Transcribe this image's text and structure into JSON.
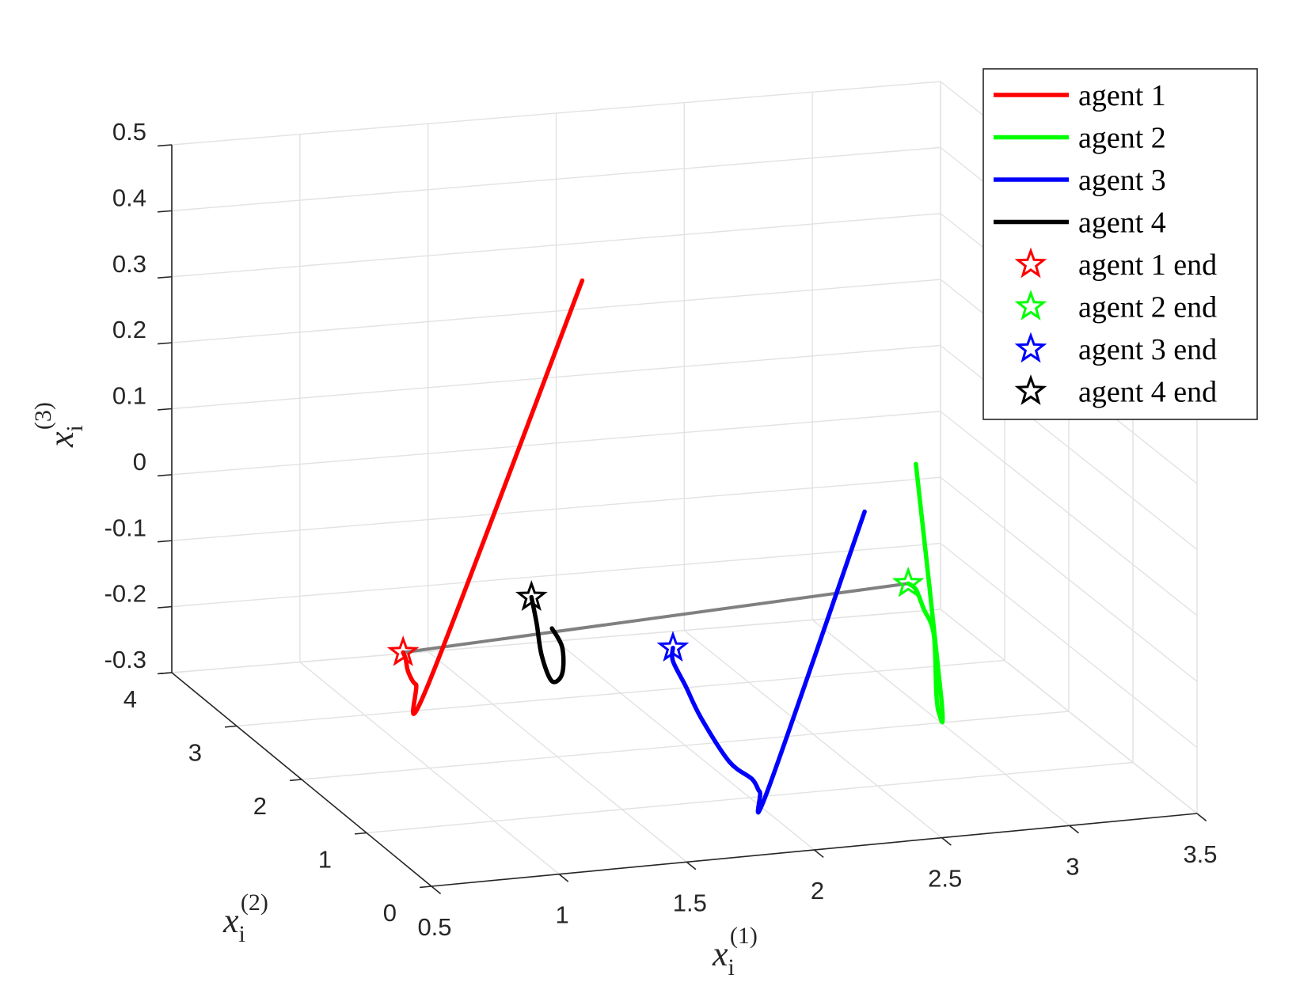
{
  "chart_data": {
    "type": "line",
    "subtype": "3d-trajectory",
    "title": "",
    "xlabel": {
      "base": "x",
      "sub": "i",
      "sup": "(1)"
    },
    "ylabel": {
      "base": "x",
      "sub": "i",
      "sup": "(2)"
    },
    "zlabel": {
      "base": "x",
      "sub": "i",
      "sup": "(3)"
    },
    "xlim": [
      0.5,
      3.5
    ],
    "ylim": [
      0,
      4
    ],
    "zlim": [
      -0.3,
      0.5
    ],
    "xticks": [
      0.5,
      1,
      1.5,
      2,
      2.5,
      3,
      3.5
    ],
    "xtick_labels": [
      "0.5",
      "1",
      "1.5",
      "2",
      "2.5",
      "3",
      "3.5"
    ],
    "yticks": [
      0,
      1,
      2,
      3,
      4
    ],
    "ytick_labels": [
      "0",
      "1",
      "2",
      "3",
      "4"
    ],
    "zticks": [
      -0.3,
      -0.2,
      -0.1,
      0,
      0.1,
      0.2,
      0.3,
      0.4,
      0.5
    ],
    "ztick_labels": [
      "-0.3",
      "-0.2",
      "-0.1",
      "0",
      "0.1",
      "0.2",
      "0.3",
      "0.4",
      "0.5"
    ],
    "grid": true,
    "legend_position": "top-right",
    "series": [
      {
        "name": "agent 1",
        "color": "#ff0000",
        "points": [
          [
            1.88,
            3.12,
            0.32
          ],
          [
            1.25,
            3.0,
            -0.26
          ],
          [
            1.2,
            3.0,
            -0.26
          ],
          [
            1.17,
            3.0,
            -0.24
          ],
          [
            1.16,
            3.0,
            -0.22
          ],
          [
            1.15,
            3.0,
            -0.21
          ]
        ]
      },
      {
        "name": "agent 2",
        "color": "#00ff00",
        "points": [
          [
            2.6,
            0.8,
            0.2
          ],
          [
            2.7,
            0.8,
            -0.16
          ],
          [
            2.69,
            0.8,
            -0.18
          ],
          [
            2.68,
            0.8,
            -0.15
          ],
          [
            2.67,
            0.8,
            -0.06
          ],
          [
            2.63,
            0.8,
            -0.02
          ],
          [
            2.6,
            0.8,
            0.01
          ],
          [
            2.57,
            0.8,
            0.02
          ]
        ]
      },
      {
        "name": "agent 3",
        "color": "#0000ff",
        "points": [
          [
            2.5,
            1.2,
            0.1
          ],
          [
            2.12,
            1.2,
            -0.31
          ],
          [
            2.09,
            1.2,
            -0.31
          ],
          [
            2.06,
            1.2,
            -0.29
          ],
          [
            1.97,
            1.2,
            -0.26
          ],
          [
            1.86,
            1.2,
            -0.19
          ],
          [
            1.8,
            1.2,
            -0.14
          ],
          [
            1.75,
            1.2,
            -0.1
          ],
          [
            1.75,
            1.2,
            -0.08
          ]
        ]
      },
      {
        "name": "agent 4",
        "color": "#000000",
        "points": [
          [
            1.58,
            2.4,
            -0.14
          ],
          [
            1.62,
            2.4,
            -0.17
          ],
          [
            1.62,
            2.4,
            -0.21
          ],
          [
            1.58,
            2.4,
            -0.22
          ],
          [
            1.54,
            2.4,
            -0.18
          ],
          [
            1.52,
            2.4,
            -0.13
          ],
          [
            1.5,
            2.4,
            -0.09
          ]
        ]
      }
    ],
    "end_markers": [
      {
        "name": "agent 1 end",
        "color": "#ff0000",
        "point": [
          1.15,
          3.0,
          -0.21
        ]
      },
      {
        "name": "agent 2 end",
        "color": "#00ff00",
        "point": [
          2.57,
          0.8,
          0.02
        ]
      },
      {
        "name": "agent 3 end",
        "color": "#0000ff",
        "point": [
          1.75,
          1.2,
          -0.08
        ]
      },
      {
        "name": "agent 4 end",
        "color": "#000000",
        "point": [
          1.5,
          2.4,
          -0.09
        ]
      }
    ],
    "connector": {
      "color": "#808080",
      "from": "agent 1 end",
      "to": "agent 2 end"
    }
  }
}
